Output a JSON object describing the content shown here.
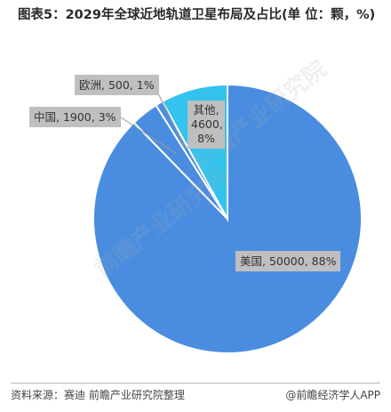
{
  "title": "图表5：2029年全球近地轨道卫星布局及占比(单 位：颗，%)",
  "chart_data": {
    "type": "pie",
    "title": "图表5：2029年全球近地轨道卫星布局及占比(单 位：颗，%)",
    "slices": [
      {
        "name": "美国",
        "value": 50000,
        "percent": 88,
        "label": "美国, 50000, 88%",
        "color": "#4a8de0"
      },
      {
        "name": "中国",
        "value": 1900,
        "percent": 3,
        "label": "中国, 1900, 3%",
        "color": "#4a8de0"
      },
      {
        "name": "欧洲",
        "value": 500,
        "percent": 1,
        "label": "欧洲, 500, 1%",
        "color": "#4a8de0"
      },
      {
        "name": "其他",
        "value": 4600,
        "percent": 8,
        "label": "其他, 4600, 8%",
        "color": "#33c3ee"
      }
    ]
  },
  "footer": {
    "source": "资料来源：赛迪 前瞻产业研究院整理",
    "brand": "@前瞻经济学人APP"
  },
  "watermark": "前瞻产业研究院"
}
